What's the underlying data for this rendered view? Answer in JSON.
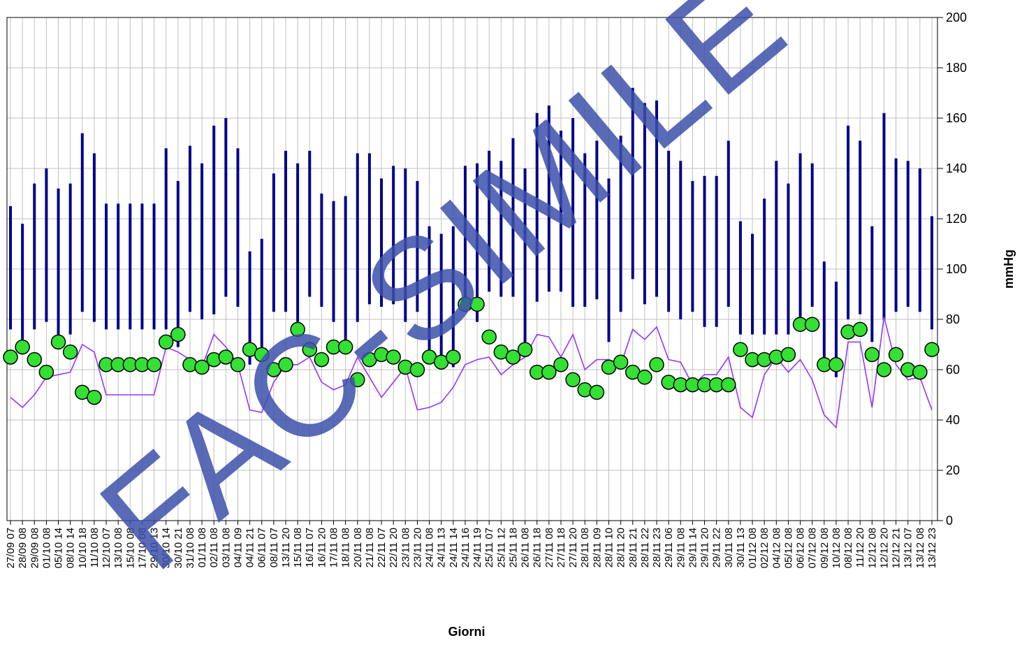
{
  "chart_data": {
    "type": "combo",
    "x_label": "Giorni",
    "y_label": "mmHg",
    "watermark": "FAC-SIMILE",
    "ylim": [
      0,
      200
    ],
    "yticks": [
      0,
      20,
      40,
      60,
      80,
      100,
      120,
      140,
      160,
      180,
      200
    ],
    "grid": true,
    "categories": [
      "27/09 07",
      "28/09 08",
      "29/09 08",
      "01/10 08",
      "05/10 14",
      "08/10 14",
      "10/10 18",
      "11/10 08",
      "12/10 07",
      "13/10 08",
      "15/10 08",
      "17/10 08",
      "29/10 13",
      "30/10 14",
      "30/10 21",
      "31/10 08",
      "01/11 08",
      "02/11 08",
      "03/11 08",
      "04/11 09",
      "04/11 21",
      "06/11 07",
      "08/11 07",
      "13/11 20",
      "15/11 08",
      "16/11 07",
      "16/11 20",
      "17/11 08",
      "18/11 08",
      "20/11 08",
      "21/11 08",
      "22/11 07",
      "22/11 20",
      "23/11 08",
      "23/11 20",
      "24/11 08",
      "24/11 13",
      "24/11 14",
      "24/11 16",
      "24/11 19",
      "25/11 07",
      "25/11 12",
      "25/11 18",
      "26/11 08",
      "26/11 18",
      "27/11 08",
      "27/11 18",
      "27/11 20",
      "28/11 08",
      "28/11 09",
      "28/11 10",
      "28/11 20",
      "28/11 21",
      "28/11 22",
      "28/11 23",
      "29/11 06",
      "29/11 08",
      "29/11 14",
      "29/11 20",
      "29/11 22",
      "30/11 08",
      "30/11 13",
      "01/12 08",
      "02/12 08",
      "04/12 08",
      "05/12 08",
      "06/12 08",
      "07/12 08",
      "09/12 08",
      "10/12 08",
      "08/12 08",
      "11/12 20",
      "12/12 08",
      "12/12 20",
      "12/12 21",
      "13/12 07",
      "13/12 08",
      "13/12 23"
    ],
    "series": [
      {
        "type": "range",
        "color": "#00008b",
        "high": [
          125,
          118,
          134,
          140,
          132,
          134,
          154,
          146,
          126,
          126,
          126,
          126,
          126,
          148,
          135,
          149,
          142,
          157,
          160,
          148,
          107,
          112,
          138,
          147,
          142,
          147,
          130,
          127,
          129,
          146,
          146,
          136,
          141,
          140,
          135,
          117,
          114,
          117,
          141,
          142,
          147,
          143,
          152,
          140,
          162,
          165,
          155,
          160,
          146,
          151,
          136,
          153,
          172,
          166,
          167,
          147,
          143,
          135,
          137,
          137,
          151,
          119,
          114,
          128,
          143,
          134,
          146,
          142,
          103,
          95,
          157,
          151,
          117,
          162,
          144,
          143,
          140,
          121
        ],
        "low": [
          76,
          69,
          76,
          79,
          71,
          74,
          83,
          79,
          76,
          76,
          76,
          76,
          76,
          76,
          69,
          83,
          80,
          82,
          89,
          85,
          62,
          69,
          83,
          83,
          79,
          89,
          85,
          79,
          68,
          79,
          86,
          85,
          86,
          79,
          83,
          65,
          61,
          61,
          83,
          79,
          91,
          89,
          89,
          65,
          87,
          91,
          91,
          85,
          85,
          88,
          71,
          83,
          96,
          86,
          89,
          83,
          80,
          83,
          77,
          77,
          85,
          74,
          74,
          74,
          74,
          74,
          80,
          85,
          61,
          57,
          80,
          82,
          71,
          80,
          83,
          85,
          83,
          76
        ]
      },
      {
        "type": "scatter",
        "color": "#33e033",
        "values": [
          65,
          69,
          64,
          59,
          71,
          67,
          51,
          49,
          62,
          62,
          62,
          62,
          62,
          71,
          74,
          62,
          61,
          64,
          65,
          62,
          68,
          66,
          60,
          62,
          76,
          68,
          64,
          69,
          69,
          56,
          64,
          66,
          65,
          61,
          60,
          65,
          63,
          65,
          86,
          86,
          73,
          67,
          65,
          68,
          59,
          59,
          62,
          56,
          52,
          51,
          61,
          63,
          59,
          57,
          62,
          55,
          54,
          54,
          54,
          54,
          54,
          68,
          64,
          64,
          65,
          66,
          78,
          78,
          62,
          62,
          75,
          76,
          66,
          60,
          66,
          60,
          59,
          68
        ]
      },
      {
        "type": "line",
        "color": "#9933ff",
        "values": [
          49,
          45,
          50,
          57,
          58,
          59,
          70,
          67,
          50,
          50,
          50,
          50,
          50,
          69,
          67,
          64,
          61,
          74,
          69,
          62,
          44,
          43,
          55,
          62,
          62,
          65,
          55,
          52,
          54,
          65,
          57,
          49,
          55,
          61,
          44,
          45,
          47,
          53,
          62,
          64,
          65,
          58,
          62,
          65,
          74,
          73,
          65,
          74,
          60,
          64,
          64,
          62,
          76,
          72,
          77,
          64,
          63,
          54,
          58,
          58,
          65,
          45,
          41,
          58,
          65,
          59,
          64,
          56,
          42,
          37,
          71,
          71,
          45,
          81,
          62,
          56,
          57,
          44
        ]
      }
    ]
  }
}
